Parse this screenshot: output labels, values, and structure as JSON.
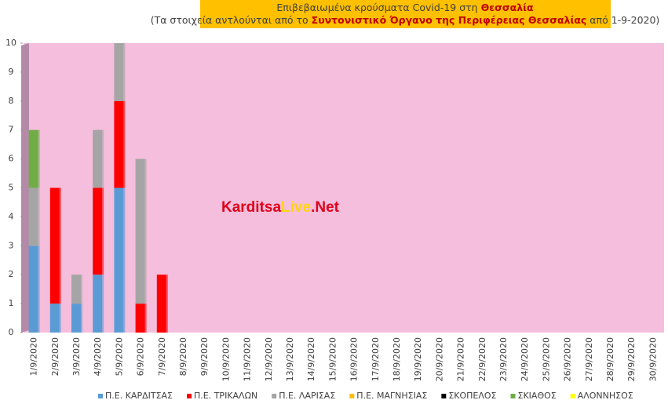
{
  "chart_data": {
    "type": "stacked-bar",
    "title_lines": [
      [
        {
          "text": "Επιβεβαιωμένα κρούσματα Covid-19 στη ",
          "bold": false
        },
        {
          "text": "Θεσσαλία",
          "bold": true
        }
      ],
      [
        {
          "text": "(Τα στοιχεία αντλούνται από το ",
          "bold": false
        },
        {
          "text": "Συντονιστικό Όργανο της Περιφέρειας Θεσσαλίας",
          "bold": true
        },
        {
          "text": " από 1-9-2020)",
          "bold": false
        }
      ]
    ],
    "title_background": "#ffc000",
    "watermark": [
      {
        "text": "Karditsa",
        "color": "#e0001a"
      },
      {
        "text": "Live",
        "color": "#ffd700"
      },
      {
        "text": ".Net",
        "color": "#e0001a"
      }
    ],
    "background": "#f4bedc",
    "categories": [
      "1/9/2020",
      "2/9/2020",
      "3/9/2020",
      "4/9/2020",
      "5/9/2020",
      "6/9/2020",
      "7/9/2020",
      "8/9/2020",
      "9/9/2020",
      "10/9/2020",
      "11/9/2020",
      "12/9/2020",
      "13/9/2020",
      "14/9/2020",
      "15/9/2020",
      "16/9/2020",
      "17/9/2020",
      "18/9/2020",
      "19/9/2020",
      "20/9/2020",
      "21/9/2020",
      "22/9/2020",
      "23/9/2020",
      "24/9/2020",
      "25/9/2020",
      "26/9/2020",
      "27/9/2020",
      "28/9/2020",
      "29/9/2020",
      "30/9/2020"
    ],
    "series": [
      {
        "name": "Π.Ε. ΚΑΡΔΙΤΣΑΣ",
        "color": "#5b9bd5",
        "values": [
          3,
          1,
          1,
          2,
          5,
          0,
          0,
          0,
          0,
          0,
          0,
          0,
          0,
          0,
          0,
          0,
          0,
          0,
          0,
          0,
          0,
          0,
          0,
          0,
          0,
          0,
          0,
          0,
          0,
          0
        ]
      },
      {
        "name": "Π.Ε. ΤΡΙΚΑΛΩΝ",
        "color": "#ff0000",
        "values": [
          0,
          4,
          0,
          3,
          3,
          1,
          2,
          0,
          0,
          0,
          0,
          0,
          0,
          0,
          0,
          0,
          0,
          0,
          0,
          0,
          0,
          0,
          0,
          0,
          0,
          0,
          0,
          0,
          0,
          0
        ]
      },
      {
        "name": "Π.Ε. ΛΑΡΙΣΑΣ",
        "color": "#a5a5a5",
        "values": [
          2,
          0,
          1,
          2,
          2,
          5,
          0,
          0,
          0,
          0,
          0,
          0,
          0,
          0,
          0,
          0,
          0,
          0,
          0,
          0,
          0,
          0,
          0,
          0,
          0,
          0,
          0,
          0,
          0,
          0
        ]
      },
      {
        "name": "Π.Ε. ΜΑΓΝΗΣΙΑΣ",
        "color": "#ffc000",
        "values": [
          0,
          0,
          0,
          0,
          0,
          0,
          0,
          0,
          0,
          0,
          0,
          0,
          0,
          0,
          0,
          0,
          0,
          0,
          0,
          0,
          0,
          0,
          0,
          0,
          0,
          0,
          0,
          0,
          0,
          0
        ]
      },
      {
        "name": "ΣΚΟΠΕΛΟΣ",
        "color": "#000000",
        "values": [
          0,
          0,
          0,
          0,
          0,
          0,
          0,
          0,
          0,
          0,
          0,
          0,
          0,
          0,
          0,
          0,
          0,
          0,
          0,
          0,
          0,
          0,
          0,
          0,
          0,
          0,
          0,
          0,
          0,
          0
        ]
      },
      {
        "name": "ΣΚΙΑΘΟΣ",
        "color": "#70ad47",
        "values": [
          2,
          0,
          0,
          0,
          0,
          0,
          0,
          0,
          0,
          0,
          0,
          0,
          0,
          0,
          0,
          0,
          0,
          0,
          0,
          0,
          0,
          0,
          0,
          0,
          0,
          0,
          0,
          0,
          0,
          0
        ]
      },
      {
        "name": "ΑΛΟΝΝΗΣΟΣ",
        "color": "#ffff00",
        "values": [
          0,
          0,
          0,
          0,
          0,
          0,
          0,
          0,
          0,
          0,
          0,
          0,
          0,
          0,
          0,
          0,
          0,
          0,
          0,
          0,
          0,
          0,
          0,
          0,
          0,
          0,
          0,
          0,
          0,
          0
        ]
      }
    ],
    "ylim": [
      0,
      10
    ],
    "yticks": [
      0,
      1,
      2,
      3,
      4,
      5,
      6,
      7,
      8,
      9,
      10
    ],
    "grid": false
  }
}
